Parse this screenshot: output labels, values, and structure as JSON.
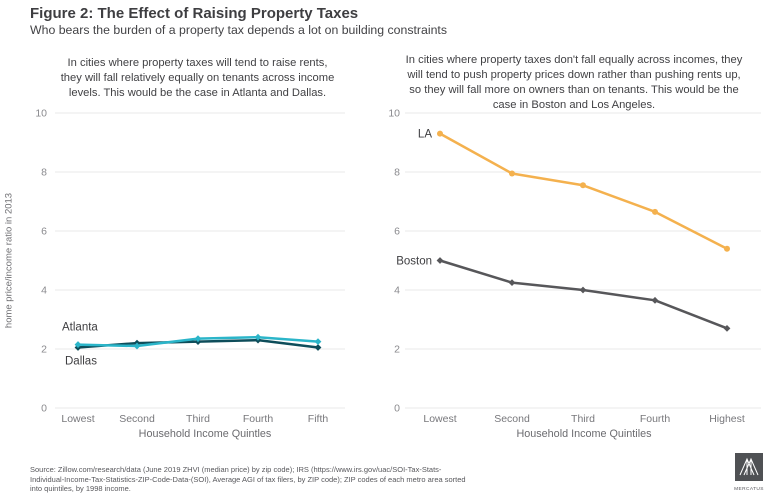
{
  "header": {
    "title": "Figure 2: The Effect of Raising Property Taxes",
    "subtitle": "Who bears the burden of a property tax depends a lot on building constraints"
  },
  "chart_data": [
    {
      "type": "line",
      "caption_lines": [
        "In cities where property taxes will tend to raise rents,",
        "they will fall relatively equally on tenants across income",
        "levels. This would be the case in Atlanta and Dallas."
      ],
      "categories": [
        "Lowest",
        "Second",
        "Third",
        "Fourth",
        "Fifth"
      ],
      "xlabel": "Household Income Quintles",
      "ylabel": "home price/income ratio in 2013",
      "ylim": [
        0,
        10
      ],
      "yticks": [
        10,
        8,
        6,
        4,
        2,
        0
      ],
      "grid": true,
      "legend_position": "inline-labels",
      "series": [
        {
          "name": "Atlanta",
          "color": "#2bb5c9",
          "marker": "diamond",
          "values": [
            2.15,
            2.1,
            2.35,
            2.4,
            2.25
          ],
          "label": {
            "anchor": "start",
            "dx": -16,
            "dy": -14
          }
        },
        {
          "name": "Dallas",
          "color": "#0e4d5a",
          "marker": "diamond",
          "values": [
            2.05,
            2.2,
            2.25,
            2.3,
            2.05
          ],
          "label": {
            "anchor": "start",
            "dx": -13,
            "dy": 17
          }
        }
      ]
    },
    {
      "type": "line",
      "caption_lines": [
        "In cities where property taxes don't fall equally across incomes, they",
        "will tend to push property prices down rather than pushing rents up,",
        "so they will fall more on owners than on tenants. This would be the",
        "case in Boston and Los Angeles."
      ],
      "categories": [
        "Lowest",
        "Second",
        "Third",
        "Fourth",
        "Highest"
      ],
      "xlabel": "Household Income Quintiles",
      "ylabel": "",
      "ylim": [
        0,
        10
      ],
      "yticks": [
        10,
        8,
        6,
        4,
        2,
        0
      ],
      "grid": true,
      "legend_position": "inline-labels",
      "series": [
        {
          "name": "LA",
          "color": "#f4b14e",
          "marker": "circle",
          "values": [
            9.3,
            7.95,
            7.55,
            6.65,
            5.4
          ],
          "label": {
            "anchor": "end",
            "dx": -8,
            "dy": 4
          }
        },
        {
          "name": "Boston",
          "color": "#57575a",
          "marker": "diamond",
          "values": [
            5.0,
            4.25,
            4.0,
            3.65,
            2.7
          ],
          "label": {
            "anchor": "end",
            "dx": -8,
            "dy": 4
          }
        }
      ]
    }
  ],
  "source": {
    "lines": [
      "Source: Zillow.com/research/data (June 2019 ZHVI (median price) by zip code); IRS (https://www.irs.gov/uac/SOI-Tax-Stats-",
      "Individual-Income-Tax-Statistics-ZIP-Code-Data-(SOI), Average AGI of tax filers, by ZIP code); ZIP codes of each metro area sorted",
      "into quintiles, by 1998 income."
    ]
  },
  "logo": {
    "wordmark": "MERCATUS"
  },
  "colors": {
    "atlanta": "#2bb5c9",
    "dallas": "#0e4d5a",
    "la": "#f4b14e",
    "boston": "#57575a",
    "gridline": "#e8e8ea",
    "text_dark": "#3e3e41"
  }
}
